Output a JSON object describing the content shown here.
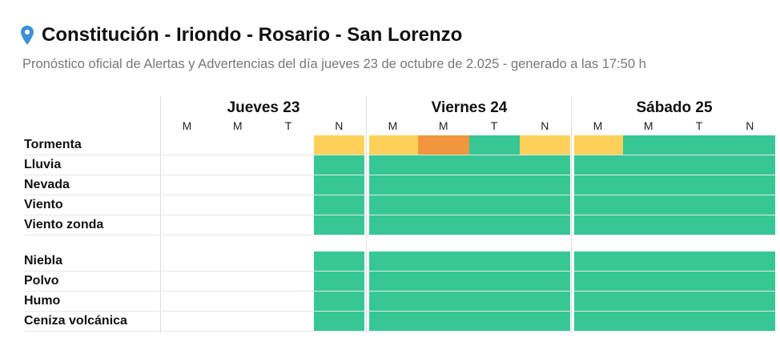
{
  "header": {
    "title": "Constitución - Iriondo - Rosario - San Lorenzo",
    "icon": "map-pin-icon",
    "subtitle": "Pronóstico oficial de Alertas y Advertencias del día jueves 23 de octubre de 2.025 - generado a las 17:50 h"
  },
  "colors": {
    "yellow": "#fdd05a",
    "orange": "#f2953f",
    "green": "#36c795",
    "pin": "#3d8fd6"
  },
  "days": [
    {
      "label": "Jueves 23",
      "periods": [
        "M",
        "M",
        "T",
        "N"
      ]
    },
    {
      "label": "Viernes 24",
      "periods": [
        "M",
        "M",
        "T",
        "N"
      ]
    },
    {
      "label": "Sábado 25",
      "periods": [
        "M",
        "M",
        "T",
        "N"
      ]
    }
  ],
  "groups": [
    [
      {
        "label": "Tormenta",
        "levels": [
          null,
          null,
          null,
          "yellow",
          "yellow",
          "orange",
          "green",
          "yellow",
          "yellow",
          "green",
          "green",
          "green"
        ]
      },
      {
        "label": "Lluvia",
        "levels": [
          null,
          null,
          null,
          "green",
          "green",
          "green",
          "green",
          "green",
          "green",
          "green",
          "green",
          "green"
        ]
      },
      {
        "label": "Nevada",
        "levels": [
          null,
          null,
          null,
          "green",
          "green",
          "green",
          "green",
          "green",
          "green",
          "green",
          "green",
          "green"
        ]
      },
      {
        "label": "Viento",
        "levels": [
          null,
          null,
          null,
          "green",
          "green",
          "green",
          "green",
          "green",
          "green",
          "green",
          "green",
          "green"
        ]
      },
      {
        "label": "Viento zonda",
        "levels": [
          null,
          null,
          null,
          "green",
          "green",
          "green",
          "green",
          "green",
          "green",
          "green",
          "green",
          "green"
        ]
      }
    ],
    [
      {
        "label": "Niebla",
        "levels": [
          null,
          null,
          null,
          "green",
          "green",
          "green",
          "green",
          "green",
          "green",
          "green",
          "green",
          "green"
        ]
      },
      {
        "label": "Polvo",
        "levels": [
          null,
          null,
          null,
          "green",
          "green",
          "green",
          "green",
          "green",
          "green",
          "green",
          "green",
          "green"
        ]
      },
      {
        "label": "Humo",
        "levels": [
          null,
          null,
          null,
          "green",
          "green",
          "green",
          "green",
          "green",
          "green",
          "green",
          "green",
          "green"
        ]
      },
      {
        "label": "Ceniza volcánica",
        "levels": [
          null,
          null,
          null,
          "green",
          "green",
          "green",
          "green",
          "green",
          "green",
          "green",
          "green",
          "green"
        ]
      }
    ]
  ]
}
